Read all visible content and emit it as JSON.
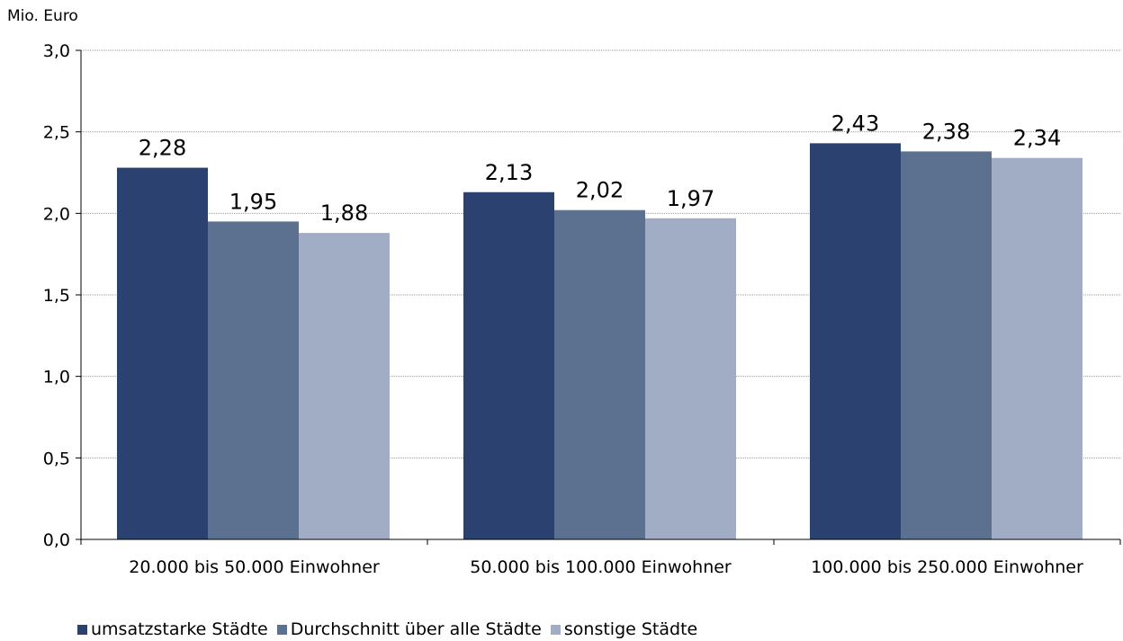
{
  "chart_data": {
    "type": "bar",
    "ylabel": "Mio. Euro",
    "ylim": [
      0,
      3.0
    ],
    "yticks": [
      "0,0",
      "0,5",
      "1,0",
      "1,5",
      "2,0",
      "2,5",
      "3,0"
    ],
    "categories": [
      "20.000 bis 50.000 Einwohner",
      "50.000 bis 100.000 Einwohner",
      "100.000 bis 250.000 Einwohner"
    ],
    "series": [
      {
        "name": "umsatzstarke Städte",
        "values": [
          2.28,
          2.13,
          2.43
        ],
        "labels": [
          "2,28",
          "2,13",
          "2,43"
        ],
        "color": "#2b4170"
      },
      {
        "name": "Durchschnitt über alle Städte",
        "values": [
          1.95,
          2.02,
          2.38
        ],
        "labels": [
          "1,95",
          "2,02",
          "2,38"
        ],
        "color": "#5c7090"
      },
      {
        "name": "sonstige Städte",
        "values": [
          1.88,
          1.97,
          2.34
        ],
        "labels": [
          "1,88",
          "1,97",
          "2,34"
        ],
        "color": "#a1adc4"
      }
    ],
    "grid": true,
    "legend_position": "bottom-left"
  }
}
